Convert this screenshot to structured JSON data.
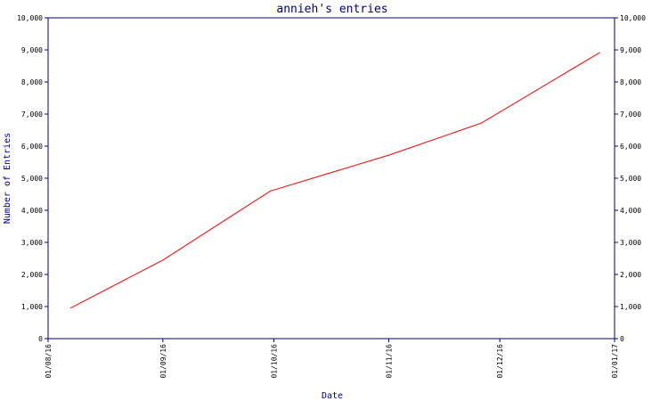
{
  "chart_data": {
    "type": "line",
    "title": "annieh's entries",
    "xlabel": "Date",
    "ylabel": "Number of Entries",
    "ylim": [
      0,
      10000
    ],
    "y_ticks": [
      0,
      1000,
      2000,
      3000,
      4000,
      5000,
      6000,
      7000,
      8000,
      9000,
      10000
    ],
    "y_tick_labels": [
      "0",
      "1,000",
      "2,000",
      "3,000",
      "4,000",
      "5,000",
      "6,000",
      "7,000",
      "8,000",
      "9,000",
      "10,000"
    ],
    "x_ticks": [
      "01/08/16",
      "01/09/16",
      "01/10/16",
      "01/11/16",
      "01/12/16",
      "01/01/17"
    ],
    "xlim": [
      "2016-08-01",
      "2017-01-01"
    ],
    "grid": false,
    "series": [
      {
        "color": "#ff0000",
        "points": [
          {
            "x": "2016-08-07",
            "y": 950
          },
          {
            "x": "2016-09-01",
            "y": 2450
          },
          {
            "x": "2016-09-30",
            "y": 4600
          },
          {
            "x": "2016-11-01",
            "y": 5720
          },
          {
            "x": "2016-11-26",
            "y": 6720
          },
          {
            "x": "2016-12-28",
            "y": 8920
          }
        ]
      }
    ]
  }
}
